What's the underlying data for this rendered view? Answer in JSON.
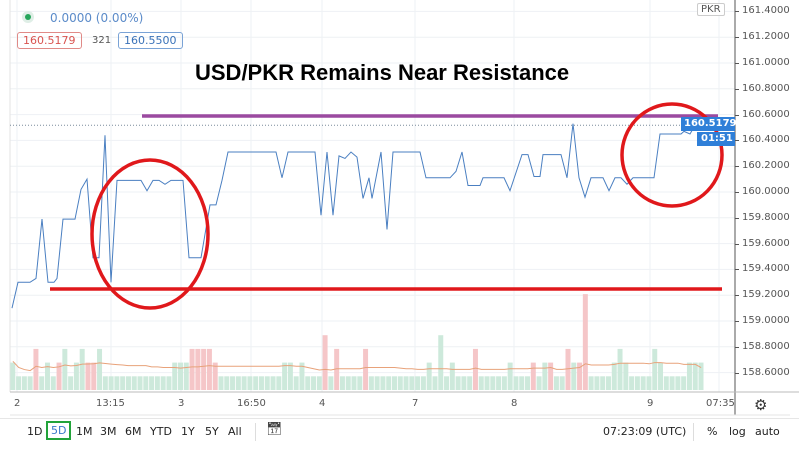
{
  "legend": {
    "change": "0.0000 (0.00%)",
    "bid": "160.5179",
    "spread": "321",
    "ask": "160.5500",
    "dot_color": "#26a65b"
  },
  "annotation": {
    "title": "USD/PKR Remains Near Resistance",
    "resistance_color": "#9b4aa0",
    "support_color": "#e0181b",
    "circle_color": "#e0181b",
    "resistance_level": 160.6,
    "support_level": 159.24
  },
  "price_axis": {
    "currency": "PKR",
    "ticks": [
      "161.4000",
      "161.2000",
      "161.0000",
      "160.8000",
      "160.6000",
      "160.4000",
      "160.2000",
      "160.0000",
      "159.8000",
      "159.6000",
      "159.4000",
      "159.2000",
      "159.0000",
      "158.8000",
      "158.6000"
    ],
    "last_price": "160.5179",
    "countdown": "01:51",
    "tag_color": "#2f7fd8"
  },
  "time_axis": {
    "labels": [
      "2",
      "13:15",
      "3",
      "16:50",
      "4",
      "7",
      "8",
      "9",
      "07:35"
    ]
  },
  "toolbar": {
    "ranges": [
      "1D",
      "5D",
      "1M",
      "3M",
      "6M",
      "YTD",
      "1Y",
      "5Y",
      "All"
    ],
    "active_range": "5D",
    "clock": "07:23:09 (UTC)",
    "percent": "%",
    "log": "log",
    "auto": "auto"
  },
  "chart_data": {
    "type": "line",
    "symbol": "USD/PKR",
    "ylim": [
      158.5,
      161.45
    ],
    "line_color": "#4a7fc1",
    "series_points": [
      [
        0,
        159.1
      ],
      [
        2,
        159.3
      ],
      [
        6,
        159.3
      ],
      [
        8,
        159.33
      ],
      [
        10,
        159.79
      ],
      [
        12,
        159.3
      ],
      [
        14,
        159.3
      ],
      [
        15,
        159.33
      ],
      [
        17,
        159.79
      ],
      [
        21,
        159.79
      ],
      [
        23,
        160.02
      ],
      [
        25,
        160.1
      ],
      [
        27,
        159.49
      ],
      [
        29,
        159.49
      ],
      [
        31,
        160.44
      ],
      [
        33,
        159.3
      ],
      [
        35,
        160.09
      ],
      [
        43,
        160.09
      ],
      [
        45,
        160.01
      ],
      [
        47,
        160.09
      ],
      [
        49,
        160.09
      ],
      [
        51,
        160.06
      ],
      [
        53,
        160.09
      ],
      [
        57,
        160.09
      ],
      [
        59,
        159.49
      ],
      [
        63,
        159.49
      ],
      [
        66,
        159.9
      ],
      [
        68,
        159.9
      ],
      [
        70,
        160.09
      ],
      [
        72,
        160.31
      ],
      [
        88,
        160.31
      ],
      [
        90,
        160.11
      ],
      [
        92,
        160.31
      ],
      [
        101,
        160.31
      ],
      [
        103,
        159.82
      ],
      [
        105,
        160.31
      ],
      [
        107,
        159.82
      ],
      [
        109,
        160.28
      ],
      [
        111,
        160.26
      ],
      [
        113,
        160.31
      ],
      [
        115,
        160.27
      ],
      [
        117,
        159.95
      ],
      [
        119,
        160.11
      ],
      [
        120,
        159.95
      ],
      [
        123,
        160.31
      ],
      [
        125,
        159.71
      ],
      [
        127,
        160.31
      ],
      [
        136,
        160.31
      ],
      [
        138,
        160.11
      ],
      [
        146,
        160.11
      ],
      [
        148,
        160.16
      ],
      [
        150,
        160.31
      ],
      [
        152,
        160.05
      ],
      [
        156,
        160.05
      ],
      [
        157,
        160.11
      ],
      [
        164,
        160.11
      ],
      [
        166,
        160.01
      ],
      [
        170,
        160.29
      ],
      [
        172,
        160.29
      ],
      [
        174,
        160.12
      ],
      [
        176,
        160.12
      ],
      [
        177,
        160.29
      ],
      [
        183,
        160.29
      ],
      [
        185,
        160.11
      ],
      [
        187,
        160.53
      ],
      [
        189,
        160.11
      ],
      [
        191,
        159.96
      ],
      [
        193,
        160.11
      ],
      [
        197,
        160.11
      ],
      [
        199,
        160.01
      ],
      [
        201,
        160.11
      ],
      [
        203,
        160.11
      ],
      [
        205,
        160.06
      ],
      [
        207,
        160.11
      ],
      [
        214,
        160.11
      ],
      [
        216,
        160.45
      ],
      [
        223,
        160.45
      ],
      [
        224,
        160.47
      ],
      [
        226,
        160.45
      ],
      [
        228,
        160.53
      ],
      [
        231,
        160.53
      ]
    ],
    "volume": [
      [
        2,
        "up"
      ],
      [
        1,
        "up"
      ],
      [
        1,
        "up"
      ],
      [
        1,
        "up"
      ],
      [
        3,
        "down"
      ],
      [
        1,
        "up"
      ],
      [
        2,
        "up"
      ],
      [
        1,
        "up"
      ],
      [
        2,
        "down"
      ],
      [
        3,
        "up"
      ],
      [
        1,
        "up"
      ],
      [
        2,
        "up"
      ],
      [
        3,
        "up"
      ],
      [
        2,
        "down"
      ],
      [
        2,
        "down"
      ],
      [
        3,
        "up"
      ],
      [
        1,
        "up"
      ],
      [
        1,
        "up"
      ],
      [
        1,
        "up"
      ],
      [
        1,
        "up"
      ],
      [
        1,
        "up"
      ],
      [
        1,
        "up"
      ],
      [
        1,
        "up"
      ],
      [
        1,
        "up"
      ],
      [
        1,
        "up"
      ],
      [
        1,
        "up"
      ],
      [
        1,
        "up"
      ],
      [
        1,
        "up"
      ],
      [
        2,
        "up"
      ],
      [
        2,
        "up"
      ],
      [
        2,
        "up"
      ],
      [
        3,
        "down"
      ],
      [
        3,
        "down"
      ],
      [
        3,
        "down"
      ],
      [
        3,
        "down"
      ],
      [
        2,
        "down"
      ],
      [
        1,
        "up"
      ],
      [
        1,
        "up"
      ],
      [
        1,
        "up"
      ],
      [
        1,
        "up"
      ],
      [
        1,
        "up"
      ],
      [
        1,
        "up"
      ],
      [
        1,
        "up"
      ],
      [
        1,
        "up"
      ],
      [
        1,
        "up"
      ],
      [
        1,
        "up"
      ],
      [
        1,
        "up"
      ],
      [
        2,
        "up"
      ],
      [
        2,
        "up"
      ],
      [
        1,
        "up"
      ],
      [
        2,
        "up"
      ],
      [
        1,
        "up"
      ],
      [
        1,
        "up"
      ],
      [
        1,
        "up"
      ],
      [
        4,
        "down"
      ],
      [
        1,
        "up"
      ],
      [
        3,
        "down"
      ],
      [
        1,
        "up"
      ],
      [
        1,
        "up"
      ],
      [
        1,
        "up"
      ],
      [
        1,
        "up"
      ],
      [
        3,
        "down"
      ],
      [
        1,
        "up"
      ],
      [
        1,
        "up"
      ],
      [
        1,
        "up"
      ],
      [
        1,
        "up"
      ],
      [
        1,
        "up"
      ],
      [
        1,
        "up"
      ],
      [
        1,
        "up"
      ],
      [
        1,
        "up"
      ],
      [
        1,
        "up"
      ],
      [
        1,
        "up"
      ],
      [
        2,
        "up"
      ],
      [
        1,
        "up"
      ],
      [
        4,
        "up"
      ],
      [
        1,
        "up"
      ],
      [
        2,
        "up"
      ],
      [
        1,
        "up"
      ],
      [
        1,
        "up"
      ],
      [
        1,
        "up"
      ],
      [
        3,
        "down"
      ],
      [
        1,
        "up"
      ],
      [
        1,
        "up"
      ],
      [
        1,
        "up"
      ],
      [
        1,
        "up"
      ],
      [
        1,
        "up"
      ],
      [
        2,
        "up"
      ],
      [
        1,
        "up"
      ],
      [
        1,
        "up"
      ],
      [
        1,
        "up"
      ],
      [
        2,
        "down"
      ],
      [
        1,
        "up"
      ],
      [
        2,
        "up"
      ],
      [
        2,
        "down"
      ],
      [
        1,
        "up"
      ],
      [
        1,
        "up"
      ],
      [
        3,
        "down"
      ],
      [
        2,
        "up"
      ],
      [
        2,
        "down"
      ],
      [
        7,
        "down"
      ],
      [
        1,
        "up"
      ],
      [
        1,
        "up"
      ],
      [
        1,
        "up"
      ],
      [
        1,
        "up"
      ],
      [
        2,
        "up"
      ],
      [
        3,
        "up"
      ],
      [
        2,
        "up"
      ],
      [
        1,
        "up"
      ],
      [
        1,
        "up"
      ],
      [
        1,
        "up"
      ],
      [
        1,
        "up"
      ],
      [
        3,
        "up"
      ],
      [
        2,
        "up"
      ],
      [
        1,
        "up"
      ],
      [
        1,
        "up"
      ],
      [
        1,
        "up"
      ],
      [
        1,
        "up"
      ],
      [
        2,
        "up"
      ],
      [
        2,
        "up"
      ],
      [
        2,
        "up"
      ]
    ],
    "volume_up_color": "#cde9db",
    "volume_down_color": "#f5c6c8",
    "volume_ma_color": "#e8a27a"
  }
}
